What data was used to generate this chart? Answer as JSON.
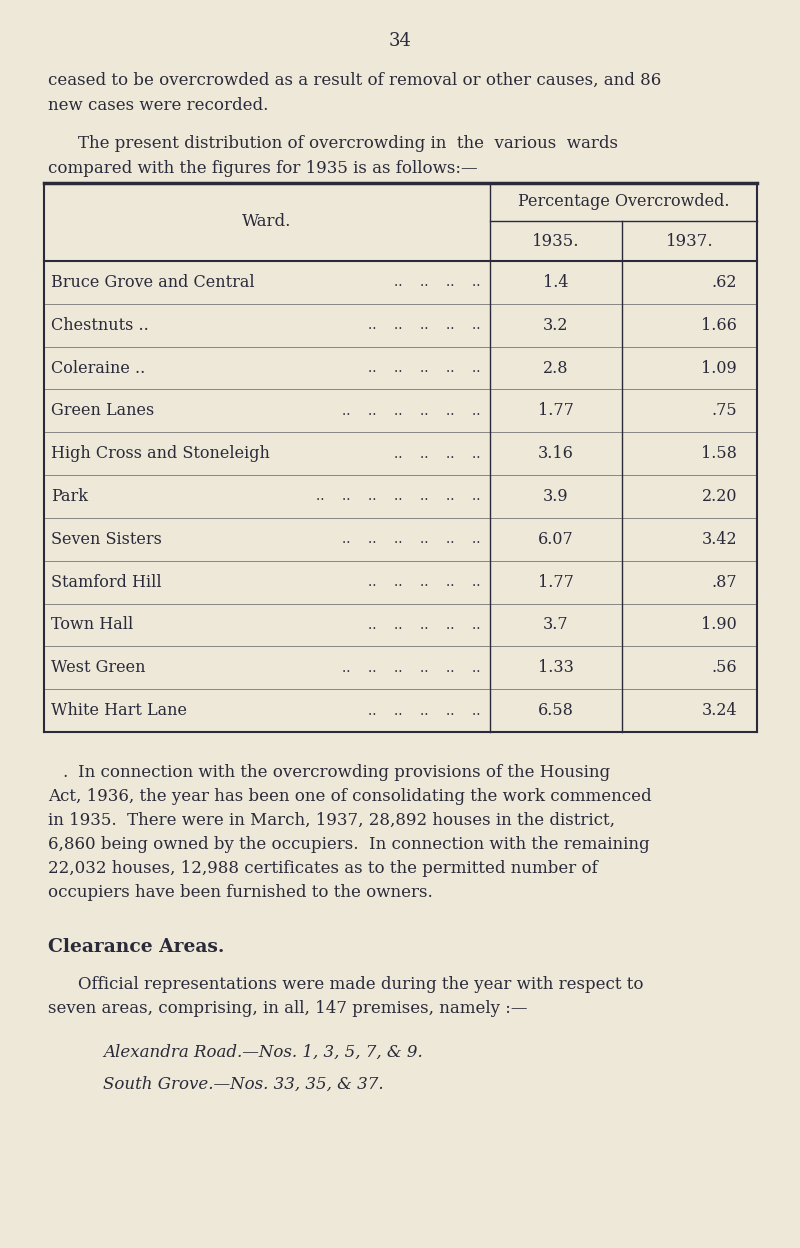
{
  "page_number": "34",
  "bg_color": "#ede8d8",
  "text_color": "#2a2a3a",
  "para1_line1": "ceased to be overcrowded as a result of removal or other causes, and 86",
  "para1_line2": "new cases were recorded.",
  "para2_line1": "The present distribution of overcrowding in  the  various  wards",
  "para2_line2": "compared with the figures for 1935 is as follows:—",
  "table_header_col1": "Ward.",
  "table_header_col2_top": "Percentage Overcrowded.",
  "table_subheader_1935": "1935.",
  "table_subheader_1937": "1937.",
  "table_rows": [
    [
      "Bruce Grove and Central",
      "..    ..    ..    ..",
      "1.4",
      ".62"
    ],
    [
      "Chestnuts ..",
      "..    ..    ..    ..    ..",
      "3.2",
      "1.66"
    ],
    [
      "Coleraine ..",
      "..    ..    ..    ..    ..",
      "2.8",
      "1.09"
    ],
    [
      "Green Lanes",
      "..    ..    ..    ..    ..    ..",
      "1.77",
      ".75"
    ],
    [
      "High Cross and Stoneleigh",
      "..    ..    ..    ..",
      "3.16",
      "1.58"
    ],
    [
      "Park",
      "..    ..    ..    ..    ..    ..    ..",
      "3.9",
      "2.20"
    ],
    [
      "Seven Sisters",
      "..    ..    ..    ..    ..    ..",
      "6.07",
      "3.42"
    ],
    [
      "Stamford Hill",
      "..    ..    ..    ..    ..",
      "1.77",
      ".87"
    ],
    [
      "Town Hall",
      "..    ..    ..    ..    ..",
      "3.7",
      "1.90"
    ],
    [
      "West Green",
      "..    ..    ..    ..    ..    ..",
      "1.33",
      ".56"
    ],
    [
      "White Hart Lane",
      "..    ..    ..    ..    ..",
      "6.58",
      "3.24"
    ]
  ],
  "para3_dot": ".",
  "para3_lines": [
    "In connection with the overcrowding provisions of the Housing",
    "Act, 1936, the year has been one of consolidating the work commenced",
    "in 1935.  There were in March, 1937, 28,892 houses in the district,",
    "6,860 being owned by the occupiers.  In connection with the remaining",
    "22,032 houses, 12,988 certificates as to the permitted number of",
    "occupiers have been furnished to the owners."
  ],
  "section_heading": "Clearance Areas.",
  "para4_line1": "Official representations were made during the year with respect to",
  "para4_line2": "seven areas, comprising, in all, 147 premises, namely :—",
  "italic1": "Alexandra Road.—Nos. 1, 3, 5, 7, & 9.",
  "italic2": "South Grove.—Nos. 33, 35, & 37."
}
